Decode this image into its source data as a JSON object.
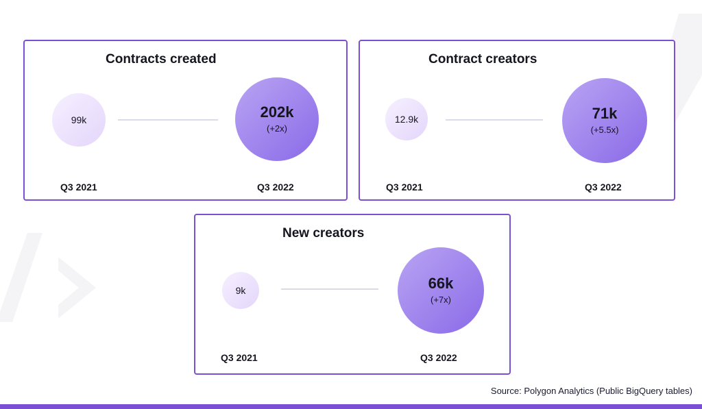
{
  "chart_data": [
    {
      "type": "bubble",
      "title": "Contracts created",
      "points": [
        {
          "period": "Q3 2021",
          "value": 99000,
          "label": "99k",
          "multiplier": ""
        },
        {
          "period": "Q3 2022",
          "value": 202000,
          "label": "202k",
          "multiplier": "(+2x)"
        }
      ]
    },
    {
      "type": "bubble",
      "title": "Contract creators",
      "points": [
        {
          "period": "Q3 2021",
          "value": 12900,
          "label": "12.9k",
          "multiplier": ""
        },
        {
          "period": "Q3 2022",
          "value": 71000,
          "label": "71k",
          "multiplier": "(+5.5x)"
        }
      ]
    },
    {
      "type": "bubble",
      "title": "New creators",
      "points": [
        {
          "period": "Q3 2021",
          "value": 9000,
          "label": "9k",
          "multiplier": ""
        },
        {
          "period": "Q3 2022",
          "value": 66000,
          "label": "66k",
          "multiplier": "(+7x)"
        }
      ]
    }
  ],
  "footer": {
    "source": "Source: Polygon Analytics (Public BigQuery tables)"
  },
  "colors": {
    "accent": "#7b4fd3",
    "bubble_small": "#e9ddfb",
    "bubble_large": "#9b7cee",
    "connector": "#d9dbe6"
  }
}
